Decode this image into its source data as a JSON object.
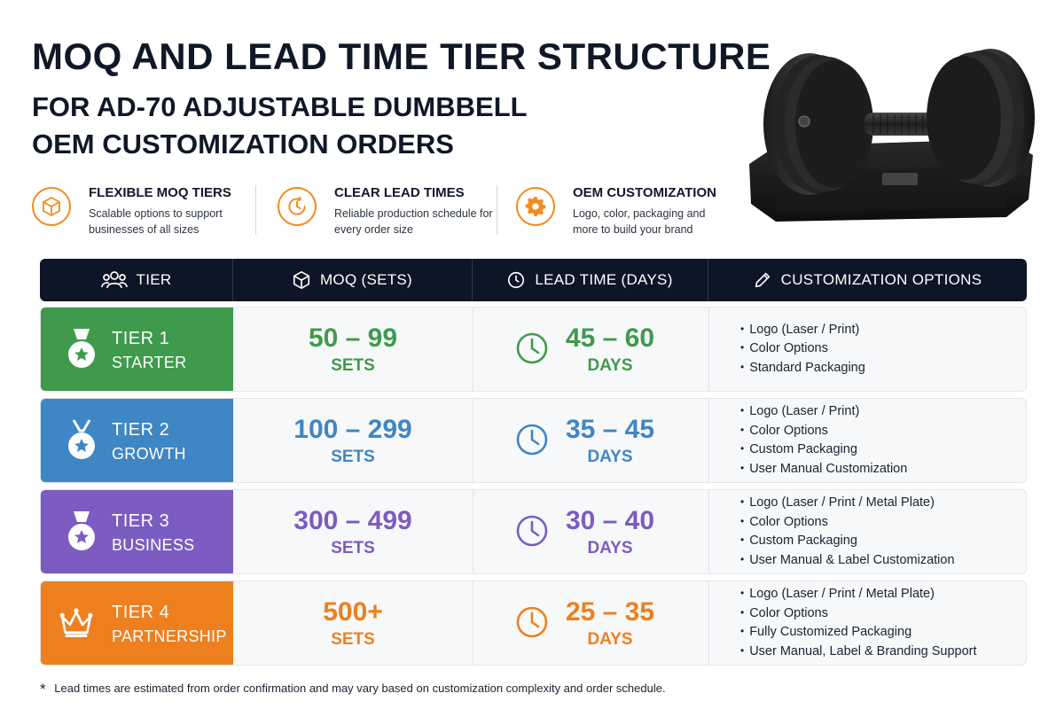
{
  "title": {
    "main": "MOQ AND LEAD TIME TIER STRUCTURE",
    "sub_line1": "FOR AD-70 ADJUSTABLE DUMBBELL",
    "sub_line2": "OEM CUSTOMIZATION ORDERS"
  },
  "features": [
    {
      "icon": "box-icon",
      "title": "FLEXIBLE MOQ TIERS",
      "desc": "Scalable options to support businesses of all sizes"
    },
    {
      "icon": "clock-icon",
      "title": "CLEAR LEAD TIMES",
      "desc": "Reliable production schedule for every order size"
    },
    {
      "icon": "gear-icon",
      "title": "OEM CUSTOMIZATION",
      "desc": "Logo, color, packaging and more to build your brand"
    }
  ],
  "table": {
    "headers": {
      "tier": "TIER",
      "moq": "MOQ (SETS)",
      "lead_time": "LEAD TIME (DAYS)",
      "customization": "CUSTOMIZATION OPTIONS"
    },
    "rows": [
      {
        "tier_label": "TIER 1",
        "tier_name": "STARTER",
        "icon": "medal-icon",
        "color": "#3f9a4c",
        "moq": "50 – 99",
        "moq_unit": "SETS",
        "lead": "45 – 60",
        "lead_unit": "DAYS",
        "options": [
          "Logo (Laser / Print)",
          "Color Options",
          "Standard Packaging"
        ]
      },
      {
        "tier_label": "TIER 2",
        "tier_name": "GROWTH",
        "icon": "medal-icon",
        "color": "#3f86c4",
        "moq": "100 – 299",
        "moq_unit": "SETS",
        "lead": "35 – 45",
        "lead_unit": "DAYS",
        "options": [
          "Logo (Laser / Print)",
          "Color Options",
          "Custom Packaging",
          "User Manual Customization"
        ]
      },
      {
        "tier_label": "TIER 3",
        "tier_name": "BUSINESS",
        "icon": "medal-icon",
        "color": "#7c5cc0",
        "moq": "300 – 499",
        "moq_unit": "SETS",
        "lead": "30 – 40",
        "lead_unit": "DAYS",
        "options": [
          "Logo (Laser / Print / Metal Plate)",
          "Color Options",
          "Custom Packaging",
          "User Manual & Label Customization"
        ]
      },
      {
        "tier_label": "TIER 4",
        "tier_name": "PARTNERSHIP",
        "icon": "crown-icon",
        "color": "#ee7f1f",
        "moq": "500+",
        "moq_unit": "SETS",
        "lead": "25 – 35",
        "lead_unit": "DAYS",
        "options": [
          "Logo (Laser / Print / Metal Plate)",
          "Color Options",
          "Fully Customized Packaging",
          "User Manual, Label & Branding Support"
        ]
      }
    ]
  },
  "footnote": {
    "mark": "*",
    "text": "Lead times are estimated from order confirmation and may vary based on customization complexity and order schedule."
  },
  "colors": {
    "accent_orange": "#f28a1e",
    "header_bg": "#0d1626"
  }
}
